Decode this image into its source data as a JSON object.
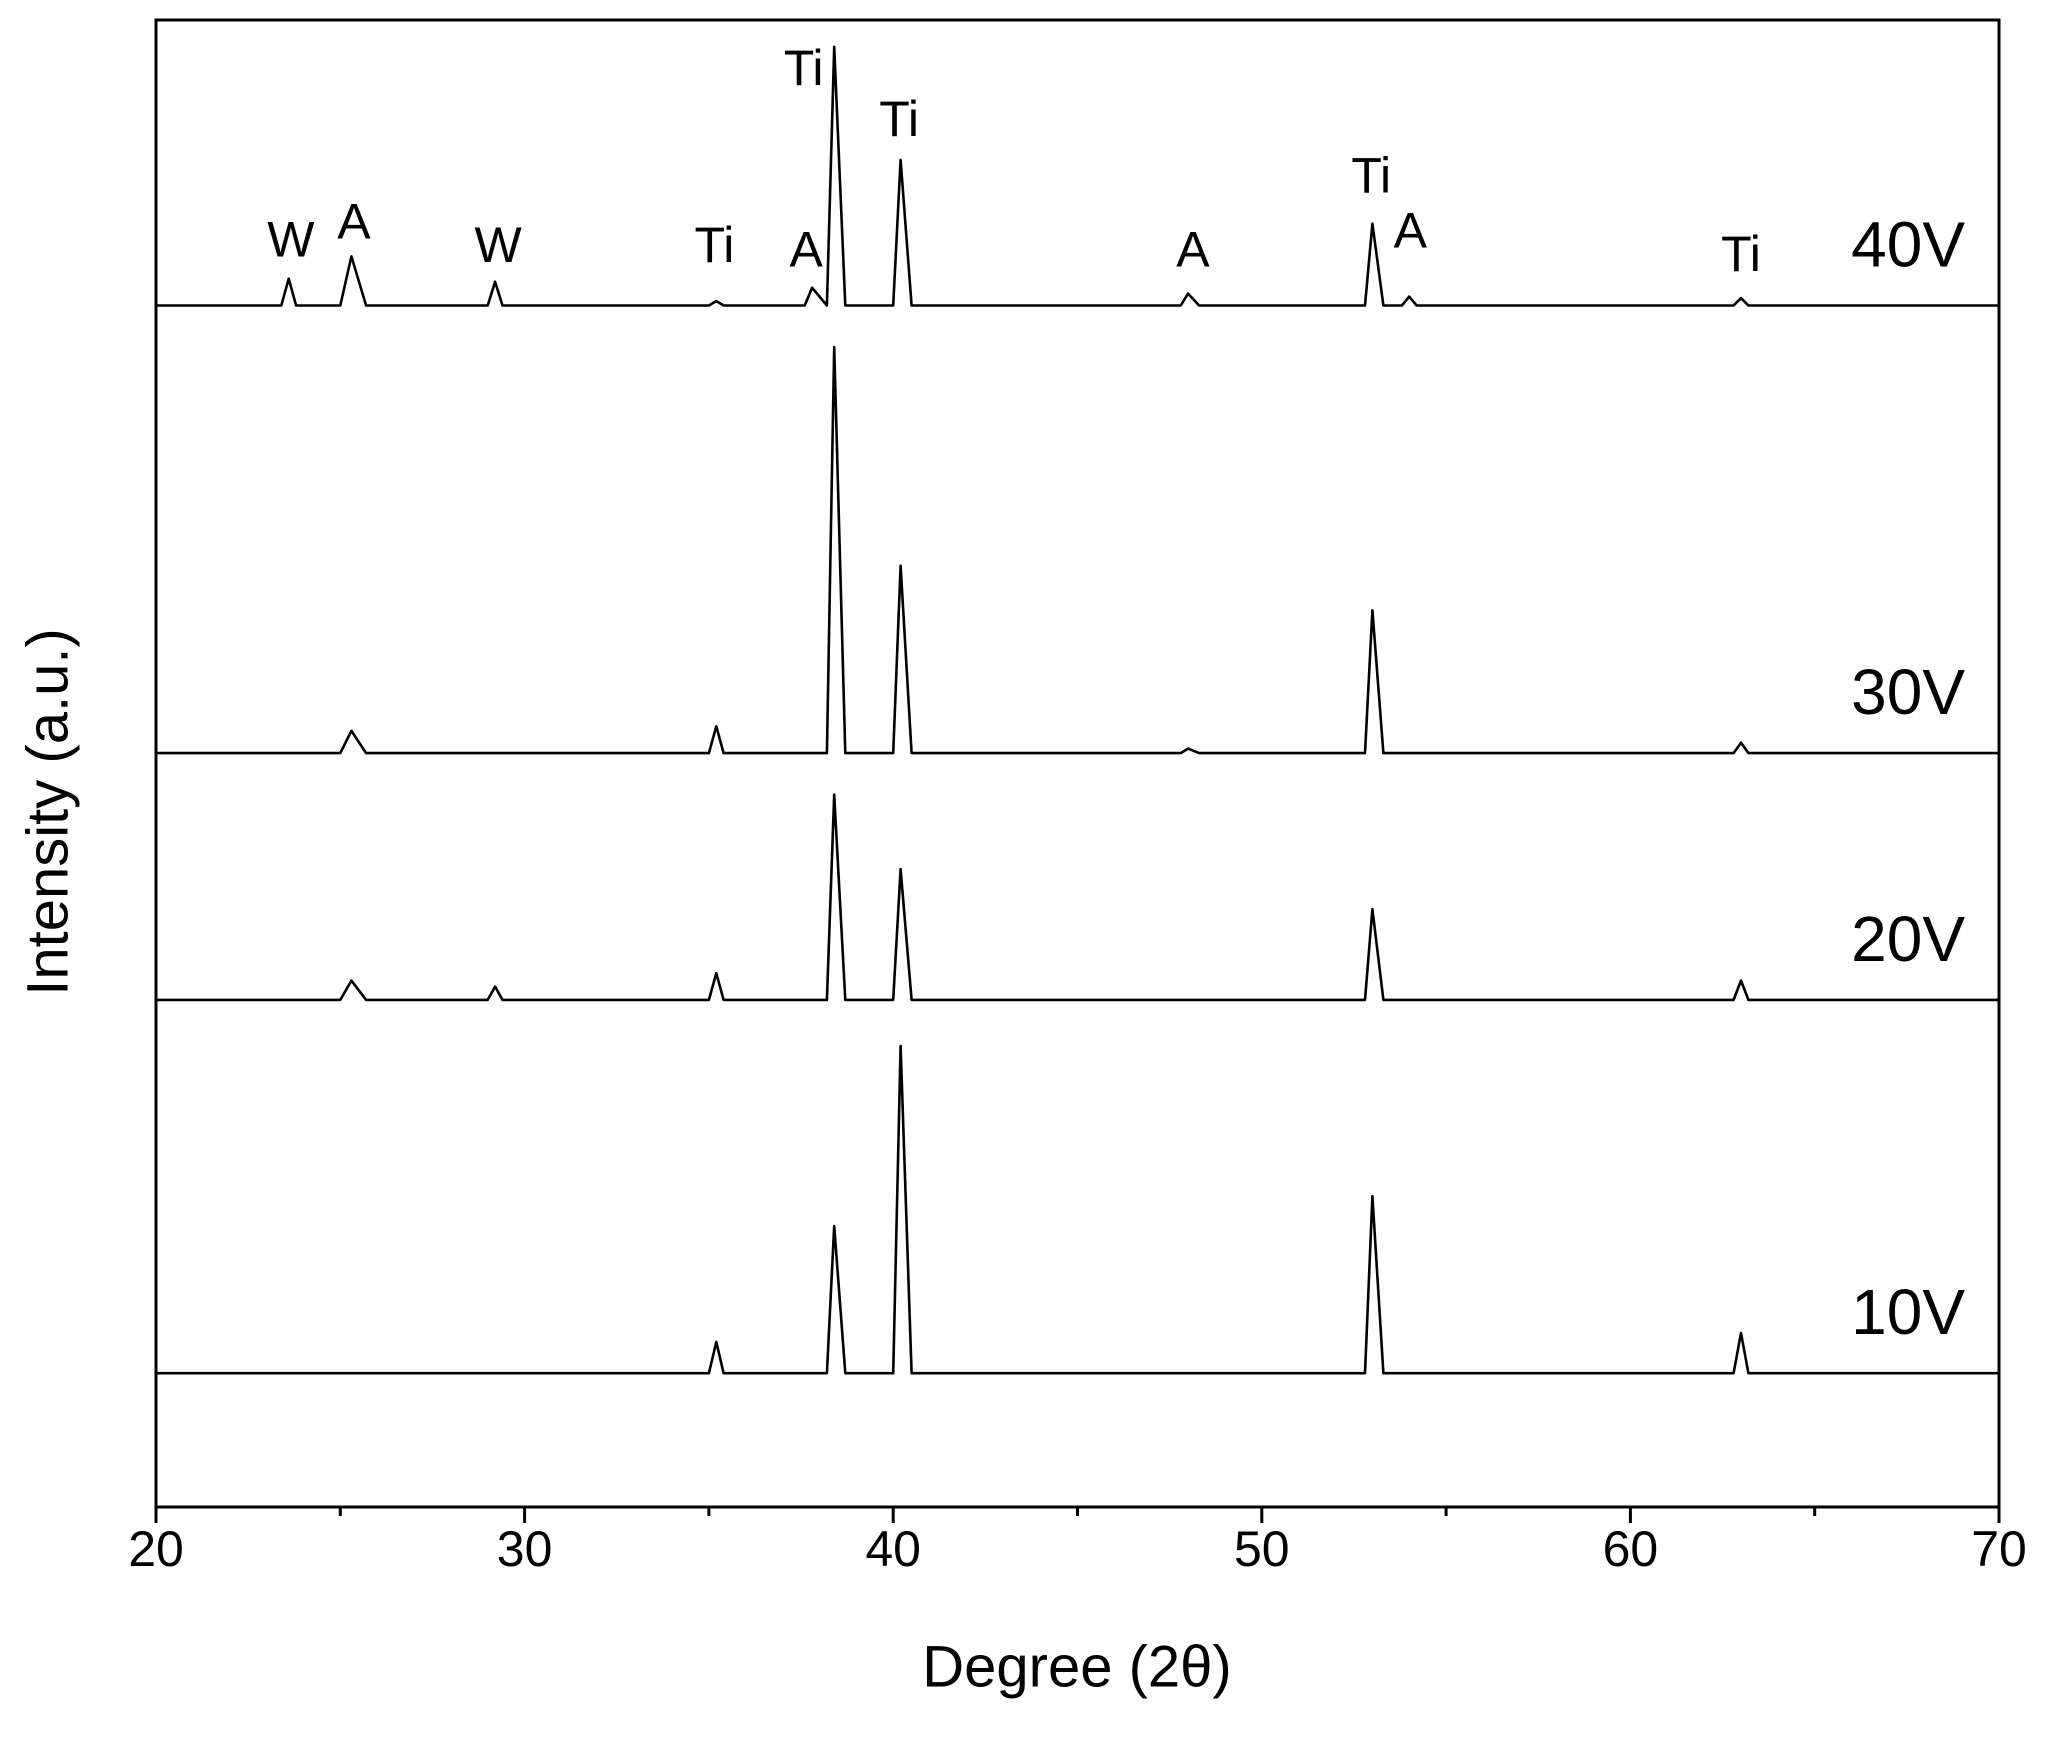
{
  "chart_data": {
    "type": "line",
    "xlabel": "Degree (2θ)",
    "ylabel": "Intensity (a.u.)",
    "x": [
      20,
      23.4,
      23.6,
      23.8,
      25.0,
      25.3,
      25.7,
      29.0,
      29.2,
      29.4,
      35.0,
      35.2,
      35.4,
      37.6,
      37.8,
      38.2,
      38.4,
      38.7,
      40.0,
      40.2,
      40.5,
      47.8,
      48.0,
      48.3,
      52.8,
      53.0,
      53.3,
      53.8,
      54.0,
      54.2,
      62.8,
      63.0,
      63.2,
      70
    ],
    "series": [
      {
        "name": "40V",
        "color": "#000000",
        "values": [
          80.8,
          80.8,
          82.6,
          80.8,
          80.8,
          84.1,
          80.8,
          80.8,
          82.4,
          80.8,
          80.8,
          81.1,
          80.8,
          80.8,
          82.0,
          80.8,
          98.2,
          80.8,
          80.8,
          90.6,
          80.8,
          80.8,
          81.6,
          80.8,
          80.8,
          86.3,
          80.8,
          80.8,
          81.4,
          80.8,
          80.8,
          81.3,
          80.8,
          80.8
        ]
      },
      {
        "name": "30V",
        "color": "#000000",
        "values": [
          50.7,
          50.7,
          50.7,
          50.7,
          50.7,
          52.2,
          50.7,
          50.7,
          50.7,
          50.7,
          50.7,
          52.5,
          50.7,
          50.7,
          50.7,
          50.7,
          78.0,
          50.7,
          50.7,
          63.3,
          50.7,
          50.7,
          51.0,
          50.7,
          50.7,
          60.3,
          50.7,
          50.7,
          50.7,
          50.7,
          50.7,
          51.4,
          50.7,
          50.7
        ]
      },
      {
        "name": "20V",
        "color": "#000000",
        "values": [
          34.1,
          34.1,
          34.1,
          34.1,
          34.1,
          35.4,
          34.1,
          34.1,
          35.0,
          34.1,
          34.1,
          35.9,
          34.1,
          34.1,
          34.1,
          34.1,
          47.9,
          34.1,
          34.1,
          42.9,
          34.1,
          34.1,
          34.1,
          34.1,
          34.1,
          40.2,
          34.1,
          34.1,
          34.1,
          34.1,
          34.1,
          35.4,
          34.1,
          34.1
        ]
      },
      {
        "name": "10V",
        "color": "#000000",
        "values": [
          9.0,
          9.0,
          9.0,
          9.0,
          9.0,
          9.0,
          9.0,
          9.0,
          9.0,
          9.0,
          9.0,
          11.1,
          9.0,
          9.0,
          9.0,
          9.0,
          18.9,
          9.0,
          9.0,
          31.0,
          9.0,
          9.0,
          9.0,
          9.0,
          9.0,
          20.9,
          9.0,
          9.0,
          9.0,
          9.0,
          9.0,
          11.7,
          9.0,
          9.0
        ]
      }
    ],
    "annotations": [
      {
        "text": "W",
        "x": 23.66,
        "y": 85.0
      },
      {
        "text": "A",
        "x": 25.37,
        "y": 86.2
      },
      {
        "text": "W",
        "x": 29.28,
        "y": 84.6
      },
      {
        "text": "Ti",
        "x": 35.15,
        "y": 84.6
      },
      {
        "text": "A",
        "x": 37.64,
        "y": 84.3
      },
      {
        "text": "Ti",
        "x": 37.57,
        "y": 96.5
      },
      {
        "text": "Ti",
        "x": 40.16,
        "y": 93.1
      },
      {
        "text": "A",
        "x": 48.13,
        "y": 84.3
      },
      {
        "text": "Ti",
        "x": 52.97,
        "y": 89.3
      },
      {
        "text": "A",
        "x": 54.03,
        "y": 85.6
      },
      {
        "text": "Ti",
        "x": 63.0,
        "y": 84.0
      }
    ],
    "xlim": [
      20,
      70
    ],
    "xticks": [
      20,
      30,
      40,
      50,
      60,
      70
    ],
    "xminorticks": [
      25,
      35,
      45,
      55,
      65
    ],
    "ylim": [
      0,
      100
    ]
  }
}
